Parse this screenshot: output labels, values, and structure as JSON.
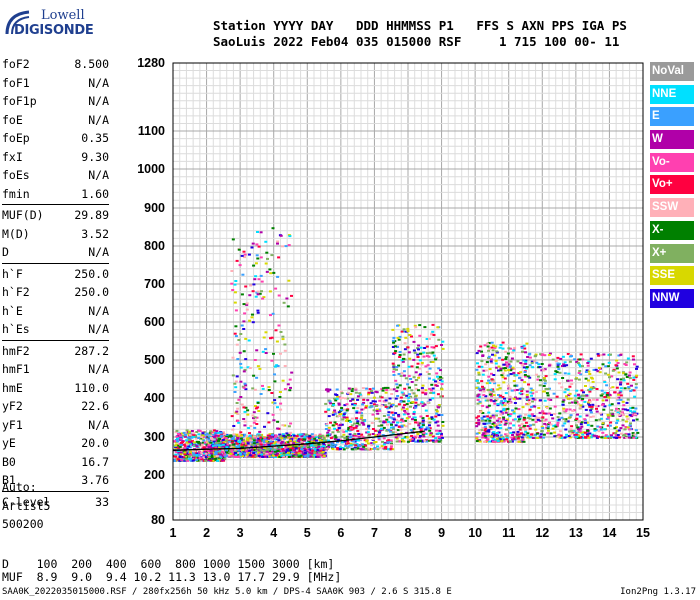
{
  "logo": {
    "line1": "Lowell",
    "line2": "DIGISONDE"
  },
  "header": {
    "labels": "Station YYYY DAY   DDD HHMMSS P1   FFS S AXN PPS IGA PS",
    "values": "SaoLuis 2022 Feb04 035 015000 RSF     1 715 100 00- 11"
  },
  "params": [
    {
      "k": "foF2",
      "v": "8.500"
    },
    {
      "k": "foF1",
      "v": "N/A"
    },
    {
      "k": "foF1p",
      "v": "N/A"
    },
    {
      "k": "foE",
      "v": "N/A"
    },
    {
      "k": "foEp",
      "v": "0.35"
    },
    {
      "k": "fxI",
      "v": "9.30"
    },
    {
      "k": "foEs",
      "v": "N/A"
    },
    {
      "k": "fmin",
      "v": "1.60"
    },
    {
      "k": "MUF(D)",
      "v": "29.89"
    },
    {
      "k": "M(D)",
      "v": "3.52"
    },
    {
      "k": "D",
      "v": "N/A"
    },
    {
      "k": "h`F",
      "v": "250.0"
    },
    {
      "k": "h`F2",
      "v": "250.0"
    },
    {
      "k": "h`E",
      "v": "N/A"
    },
    {
      "k": "h`Es",
      "v": "N/A"
    },
    {
      "k": "hmF2",
      "v": "287.2"
    },
    {
      "k": "hmF1",
      "v": "N/A"
    },
    {
      "k": "hmE",
      "v": "110.0"
    },
    {
      "k": "yF2",
      "v": "22.6"
    },
    {
      "k": "yF1",
      "v": "N/A"
    },
    {
      "k": "yE",
      "v": "20.0"
    },
    {
      "k": "B0",
      "v": "16.7"
    },
    {
      "k": "B1",
      "v": "3.76"
    },
    {
      "k": "C-level",
      "v": "33"
    }
  ],
  "auto": {
    "line1": "Auto:",
    "line2": "Artist5",
    "line3": "500200"
  },
  "legend": [
    {
      "label": "NoVal",
      "color": "#9a9a9a"
    },
    {
      "label": "NNE",
      "color": "#00e0ff"
    },
    {
      "label": "E",
      "color": "#3aa0ff"
    },
    {
      "label": "W",
      "color": "#b000a8"
    },
    {
      "label": "Vo-",
      "color": "#ff40b0"
    },
    {
      "label": "Vo+",
      "color": "#ff0040"
    },
    {
      "label": "SSW",
      "color": "#ffb0b8"
    },
    {
      "label": "X-",
      "color": "#008000"
    },
    {
      "label": "X+",
      "color": "#80b060"
    },
    {
      "label": "SSE",
      "color": "#d8d800"
    },
    {
      "label": "NNW",
      "color": "#2000e0"
    }
  ],
  "bottom": {
    "d_row": "D    100  200  400  600  800 1000 1500 3000 [km]",
    "muf_row": "MUF  8.9  9.0  9.4 10.2 11.3 13.0 17.7 29.9 [MHz]"
  },
  "footer": "SAA0K_2022035015000.RSF / 280fx256h 50 kHz 5.0 km / DPS-4 SAA0K 903 / 2.6 S 315.8 E",
  "version": "Ion2Png 1.3.17",
  "chart_data": {
    "type": "scatter",
    "x_axis": {
      "min": 1,
      "max": 15,
      "ticks": [
        1,
        2,
        3,
        4,
        5,
        6,
        7,
        8,
        9,
        10,
        11,
        12,
        13,
        14,
        15
      ]
    },
    "y_axis": {
      "min": 80,
      "max": 1280,
      "scale": "nonlinear",
      "ticks": [
        80,
        200,
        300,
        400,
        500,
        600,
        700,
        800,
        900,
        1000,
        1100,
        1280
      ]
    },
    "grid": true,
    "trace": {
      "name": "",
      "x": [
        1.0,
        2.0,
        3.0,
        4.0,
        5.0,
        6.0,
        7.0,
        8.0,
        8.5
      ],
      "y": [
        265,
        268,
        270,
        276,
        282,
        290,
        300,
        310,
        315
      ]
    },
    "echo_clusters": [
      {
        "x": [
          1.0,
          2.5
        ],
        "y": [
          240,
          320
        ],
        "density": 0.9
      },
      {
        "x": [
          2.0,
          5.5
        ],
        "y": [
          250,
          310
        ],
        "density": 1.0
      },
      {
        "x": [
          2.7,
          4.5
        ],
        "y": [
          280,
          860
        ],
        "density": 0.35
      },
      {
        "x": [
          5.5,
          7.5
        ],
        "y": [
          270,
          430
        ],
        "density": 0.5
      },
      {
        "x": [
          7.5,
          9.0
        ],
        "y": [
          290,
          600
        ],
        "density": 0.6
      },
      {
        "x": [
          10.0,
          11.5
        ],
        "y": [
          290,
          550
        ],
        "density": 0.7
      },
      {
        "x": [
          11.5,
          14.8
        ],
        "y": [
          300,
          520
        ],
        "density": 0.45
      }
    ]
  }
}
